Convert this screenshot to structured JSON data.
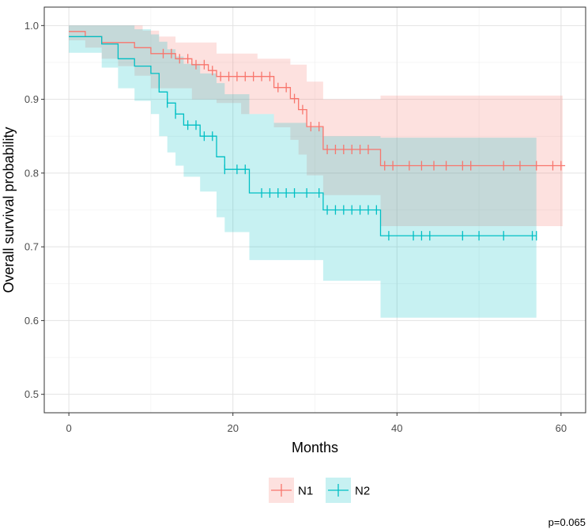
{
  "chart_data": {
    "type": "line",
    "subtype": "kaplan-meier",
    "xlabel": "Months",
    "ylabel": "Overall survival probability",
    "xlim": [
      -3,
      63
    ],
    "ylim": [
      0.475,
      1.025
    ],
    "x_ticks": [
      0,
      20,
      40,
      60
    ],
    "y_ticks": [
      0.5,
      0.6,
      0.7,
      0.8,
      0.9,
      1.0
    ],
    "y_tick_labels": [
      "0.5",
      "0.6",
      "0.7",
      "0.8",
      "0.9",
      "1.0"
    ],
    "grid": true,
    "legend_position": "bottom",
    "annotation": "p=0.065",
    "series": [
      {
        "name": "N1",
        "color": "#F8766D",
        "fill": "#F8766D",
        "steps": [
          [
            0,
            0.992
          ],
          [
            2,
            0.985
          ],
          [
            4,
            0.977
          ],
          [
            8,
            0.97
          ],
          [
            10,
            0.962
          ],
          [
            13,
            0.955
          ],
          [
            15,
            0.947
          ],
          [
            17,
            0.939
          ],
          [
            18,
            0.931
          ],
          [
            25,
            0.916
          ],
          [
            27,
            0.901
          ],
          [
            28,
            0.886
          ],
          [
            29,
            0.863
          ],
          [
            31,
            0.832
          ],
          [
            38,
            0.81
          ],
          [
            60.5,
            0.81
          ]
        ],
        "upper": [
          [
            0,
            1.0
          ],
          [
            9,
            0.993
          ],
          [
            11,
            0.985
          ],
          [
            13,
            0.977
          ],
          [
            18,
            0.962
          ],
          [
            23,
            0.955
          ],
          [
            27,
            0.947
          ],
          [
            29,
            0.924
          ],
          [
            31,
            0.9
          ],
          [
            38,
            0.905
          ],
          [
            60.2,
            0.905
          ]
        ],
        "lower": [
          [
            0,
            0.98
          ],
          [
            2,
            0.97
          ],
          [
            4,
            0.955
          ],
          [
            6,
            0.945
          ],
          [
            8,
            0.932
          ],
          [
            10,
            0.915
          ],
          [
            15,
            0.9
          ],
          [
            18,
            0.895
          ],
          [
            21,
            0.88
          ],
          [
            25,
            0.862
          ],
          [
            27,
            0.845
          ],
          [
            28,
            0.825
          ],
          [
            29,
            0.797
          ],
          [
            31,
            0.77
          ],
          [
            38,
            0.728
          ],
          [
            60.2,
            0.728
          ]
        ],
        "censor": [
          11.5,
          12.5,
          13.5,
          14.5,
          15.5,
          16.5,
          17.5,
          18.5,
          19.5,
          20.5,
          21.5,
          22.5,
          23.5,
          24.5,
          25.5,
          26.5,
          27.5,
          28.5,
          29.5,
          30.5,
          31.5,
          32.5,
          33.5,
          34.5,
          35.5,
          36.5,
          38.5,
          39.5,
          41.5,
          43,
          44.5,
          46,
          48,
          49,
          53,
          55,
          57,
          59,
          60
        ]
      },
      {
        "name": "N2",
        "color": "#00BFC4",
        "fill": "#00BFC4",
        "steps": [
          [
            0,
            0.985
          ],
          [
            4,
            0.975
          ],
          [
            6,
            0.955
          ],
          [
            8,
            0.945
          ],
          [
            10,
            0.935
          ],
          [
            11,
            0.91
          ],
          [
            12,
            0.895
          ],
          [
            13,
            0.88
          ],
          [
            14,
            0.865
          ],
          [
            16,
            0.85
          ],
          [
            18,
            0.822
          ],
          [
            19,
            0.805
          ],
          [
            22,
            0.773
          ],
          [
            31,
            0.75
          ],
          [
            38,
            0.715
          ],
          [
            57,
            0.715
          ]
        ],
        "upper": [
          [
            0,
            1.0
          ],
          [
            4,
            1.0
          ],
          [
            6,
            1.0
          ],
          [
            8,
            0.995
          ],
          [
            10,
            0.988
          ],
          [
            11,
            0.978
          ],
          [
            12,
            0.968
          ],
          [
            13,
            0.958
          ],
          [
            14,
            0.948
          ],
          [
            16,
            0.935
          ],
          [
            18,
            0.922
          ],
          [
            19,
            0.907
          ],
          [
            22,
            0.88
          ],
          [
            25,
            0.868
          ],
          [
            29,
            0.862
          ],
          [
            31,
            0.85
          ],
          [
            38,
            0.848
          ],
          [
            57,
            0.848
          ]
        ],
        "lower": [
          [
            0,
            0.963
          ],
          [
            4,
            0.943
          ],
          [
            6,
            0.915
          ],
          [
            8,
            0.898
          ],
          [
            10,
            0.88
          ],
          [
            11,
            0.85
          ],
          [
            12,
            0.828
          ],
          [
            13,
            0.81
          ],
          [
            14,
            0.795
          ],
          [
            16,
            0.775
          ],
          [
            18,
            0.74
          ],
          [
            19,
            0.72
          ],
          [
            22,
            0.682
          ],
          [
            31,
            0.654
          ],
          [
            38,
            0.604
          ],
          [
            57,
            0.604
          ]
        ],
        "censor": [
          12,
          13,
          14.5,
          15.5,
          16.5,
          17.5,
          19,
          20.5,
          21.5,
          23.5,
          24.5,
          25.5,
          26.5,
          27.5,
          29,
          30.5,
          31.5,
          32.5,
          33.5,
          34.5,
          35.5,
          36.5,
          37.5,
          39,
          42,
          43,
          44,
          48,
          50,
          53,
          56.5,
          57
        ]
      }
    ]
  }
}
